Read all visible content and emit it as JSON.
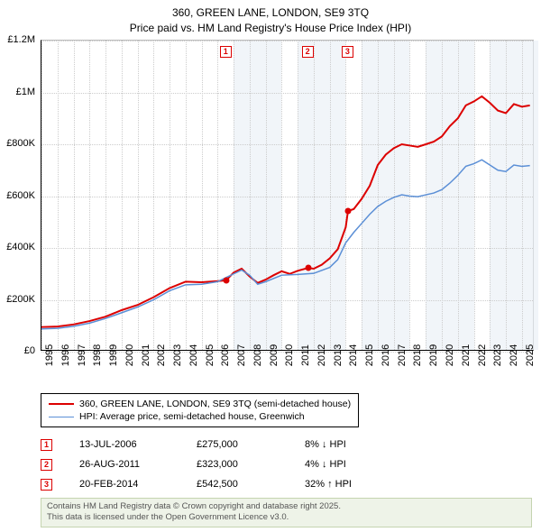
{
  "title": {
    "line1": "360, GREEN LANE, LONDON, SE9 3TQ",
    "line2": "Price paid vs. HM Land Registry's House Price Index (HPI)"
  },
  "chart": {
    "type": "line",
    "background_color": "#ffffff",
    "grid_color": "#cccccc",
    "axis_color": "#000000",
    "shade_color": "#e8eef5",
    "x_years": [
      1995,
      1996,
      1997,
      1998,
      1999,
      2000,
      2001,
      2002,
      2003,
      2004,
      2005,
      2006,
      2007,
      2008,
      2009,
      2010,
      2011,
      2012,
      2013,
      2014,
      2015,
      2016,
      2017,
      2018,
      2019,
      2020,
      2021,
      2022,
      2023,
      2024,
      2025
    ],
    "x_min": 1995,
    "x_max": 2025.8,
    "y_ticks": [
      0,
      200000,
      400000,
      600000,
      800000,
      1000000,
      1200000
    ],
    "y_labels": [
      "£0",
      "£200K",
      "£400K",
      "£600K",
      "£800K",
      "£1M",
      "£1.2M"
    ],
    "y_min": 0,
    "y_max": 1200000,
    "series": [
      {
        "name": "price_paid",
        "color": "#dc0000",
        "width": 2,
        "points": [
          [
            1995,
            95000
          ],
          [
            1996,
            97000
          ],
          [
            1997,
            105000
          ],
          [
            1998,
            118000
          ],
          [
            1999,
            135000
          ],
          [
            2000,
            160000
          ],
          [
            2001,
            180000
          ],
          [
            2002,
            210000
          ],
          [
            2003,
            245000
          ],
          [
            2004,
            270000
          ],
          [
            2005,
            268000
          ],
          [
            2006,
            272000
          ],
          [
            2006.53,
            275000
          ],
          [
            2007,
            305000
          ],
          [
            2007.5,
            320000
          ],
          [
            2008,
            290000
          ],
          [
            2008.5,
            265000
          ],
          [
            2009,
            278000
          ],
          [
            2009.5,
            295000
          ],
          [
            2010,
            310000
          ],
          [
            2010.5,
            300000
          ],
          [
            2011,
            312000
          ],
          [
            2011.65,
            323000
          ],
          [
            2012,
            320000
          ],
          [
            2012.5,
            335000
          ],
          [
            2013,
            360000
          ],
          [
            2013.5,
            395000
          ],
          [
            2014,
            480000
          ],
          [
            2014.14,
            542500
          ],
          [
            2014.5,
            550000
          ],
          [
            2015,
            590000
          ],
          [
            2015.5,
            640000
          ],
          [
            2016,
            720000
          ],
          [
            2016.5,
            760000
          ],
          [
            2017,
            785000
          ],
          [
            2017.5,
            800000
          ],
          [
            2018,
            795000
          ],
          [
            2018.5,
            790000
          ],
          [
            2019,
            800000
          ],
          [
            2019.5,
            810000
          ],
          [
            2020,
            830000
          ],
          [
            2020.5,
            870000
          ],
          [
            2021,
            900000
          ],
          [
            2021.5,
            950000
          ],
          [
            2022,
            965000
          ],
          [
            2022.5,
            985000
          ],
          [
            2023,
            960000
          ],
          [
            2023.5,
            930000
          ],
          [
            2024,
            920000
          ],
          [
            2024.5,
            955000
          ],
          [
            2025,
            945000
          ],
          [
            2025.5,
            950000
          ]
        ]
      },
      {
        "name": "hpi",
        "color": "#5b8fd6",
        "width": 1.5,
        "points": [
          [
            1995,
            88000
          ],
          [
            1996,
            90000
          ],
          [
            1997,
            98000
          ],
          [
            1998,
            110000
          ],
          [
            1999,
            128000
          ],
          [
            2000,
            150000
          ],
          [
            2001,
            172000
          ],
          [
            2002,
            200000
          ],
          [
            2003,
            235000
          ],
          [
            2004,
            258000
          ],
          [
            2005,
            260000
          ],
          [
            2006,
            270000
          ],
          [
            2007,
            300000
          ],
          [
            2007.5,
            315000
          ],
          [
            2008,
            295000
          ],
          [
            2008.5,
            260000
          ],
          [
            2009,
            270000
          ],
          [
            2010,
            295000
          ],
          [
            2011,
            298000
          ],
          [
            2012,
            302000
          ],
          [
            2013,
            325000
          ],
          [
            2013.5,
            355000
          ],
          [
            2014,
            420000
          ],
          [
            2014.5,
            460000
          ],
          [
            2015,
            495000
          ],
          [
            2015.5,
            530000
          ],
          [
            2016,
            560000
          ],
          [
            2016.5,
            580000
          ],
          [
            2017,
            595000
          ],
          [
            2017.5,
            605000
          ],
          [
            2018,
            600000
          ],
          [
            2018.5,
            598000
          ],
          [
            2019,
            605000
          ],
          [
            2019.5,
            612000
          ],
          [
            2020,
            625000
          ],
          [
            2020.5,
            650000
          ],
          [
            2021,
            680000
          ],
          [
            2021.5,
            715000
          ],
          [
            2022,
            725000
          ],
          [
            2022.5,
            740000
          ],
          [
            2023,
            720000
          ],
          [
            2023.5,
            700000
          ],
          [
            2024,
            695000
          ],
          [
            2024.5,
            720000
          ],
          [
            2025,
            715000
          ],
          [
            2025.5,
            718000
          ]
        ]
      }
    ],
    "sale_points": [
      {
        "x": 2006.53,
        "y": 275000,
        "color": "#dc0000"
      },
      {
        "x": 2011.65,
        "y": 323000,
        "color": "#dc0000"
      },
      {
        "x": 2014.14,
        "y": 542500,
        "color": "#dc0000"
      }
    ],
    "markers": [
      {
        "n": "1",
        "x": 2006.53,
        "color": "#dc0000"
      },
      {
        "n": "2",
        "x": 2011.65,
        "color": "#dc0000"
      },
      {
        "n": "3",
        "x": 2014.14,
        "color": "#dc0000"
      }
    ],
    "shaded_years": [
      2007,
      2008,
      2009,
      2011,
      2012,
      2013,
      2015,
      2016,
      2017,
      2019,
      2020,
      2021,
      2023,
      2024,
      2025
    ]
  },
  "legend": {
    "items": [
      {
        "color": "#dc0000",
        "width": 2,
        "label": "360, GREEN LANE, LONDON, SE9 3TQ (semi-detached house)"
      },
      {
        "color": "#5b8fd6",
        "width": 1.5,
        "label": "HPI: Average price, semi-detached house, Greenwich"
      }
    ]
  },
  "transactions": [
    {
      "n": "1",
      "color": "#dc0000",
      "date": "13-JUL-2006",
      "price": "£275,000",
      "delta": "8% ↓ HPI"
    },
    {
      "n": "2",
      "color": "#dc0000",
      "date": "26-AUG-2011",
      "price": "£323,000",
      "delta": "4% ↓ HPI"
    },
    {
      "n": "3",
      "color": "#dc0000",
      "date": "20-FEB-2014",
      "price": "£542,500",
      "delta": "32% ↑ HPI"
    }
  ],
  "footer": {
    "line1": "Contains HM Land Registry data © Crown copyright and database right 2025.",
    "line2": "This data is licensed under the Open Government Licence v3.0."
  }
}
